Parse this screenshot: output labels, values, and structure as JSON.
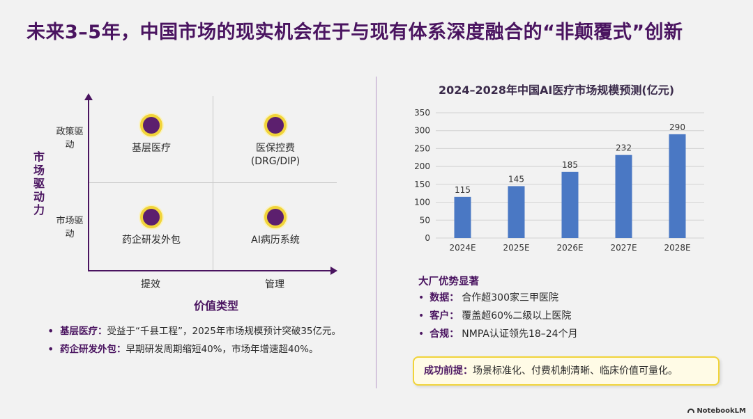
{
  "title": "未来3–5年，中国市场的现实机会在于与现有体系深度融合的“非颠覆式”创新",
  "matrix": {
    "y_axis_title": "市场驱动力",
    "y_ticks": [
      "政策驱动",
      "市场驱动"
    ],
    "x_axis_title": "价值类型",
    "x_ticks": [
      "提效",
      "管理"
    ],
    "quadrants": [
      {
        "label": "基层医疗"
      },
      {
        "label": "医保控费 (DRG/DIP)"
      },
      {
        "label": "药企研发外包"
      },
      {
        "label": "AI病历系统"
      }
    ]
  },
  "notes": [
    {
      "head": "基层医疗：",
      "text": "受益于“千县工程”，2025年市场规模预计突破35亿元。"
    },
    {
      "head": "药企研发外包：",
      "text": "早期研发周期缩短40%，市场年增速超40%。"
    }
  ],
  "chart_data": {
    "type": "bar",
    "title": "2024–2028年中国AI医疗市场规模预测(亿元)",
    "categories": [
      "2024E",
      "2025E",
      "2026E",
      "2027E",
      "2028E"
    ],
    "values": [
      115,
      145,
      185,
      232,
      290
    ],
    "ylim": [
      0,
      350
    ],
    "yticks": [
      0,
      50,
      100,
      150,
      200,
      250,
      300,
      350
    ],
    "grid": true,
    "bar_color": "#4a78c4",
    "xlabel": "",
    "ylabel": ""
  },
  "advantages": {
    "title": "大厂优势显著",
    "items": [
      {
        "head": "数据：",
        "text": "合作超300家三甲医院"
      },
      {
        "head": "客户：",
        "text": "覆盖超60%二级以上医院"
      },
      {
        "head": "合规：",
        "text": "NMPA认证领先18–24个月"
      }
    ]
  },
  "precondition": {
    "head": "成功前提：",
    "text": "场景标准化、付费机制清晰、临床价值可量化。"
  },
  "brand": "NotebookLM",
  "colors": {
    "accent": "#4a1460",
    "highlight": "#f1d43a",
    "bar": "#4a78c4"
  }
}
